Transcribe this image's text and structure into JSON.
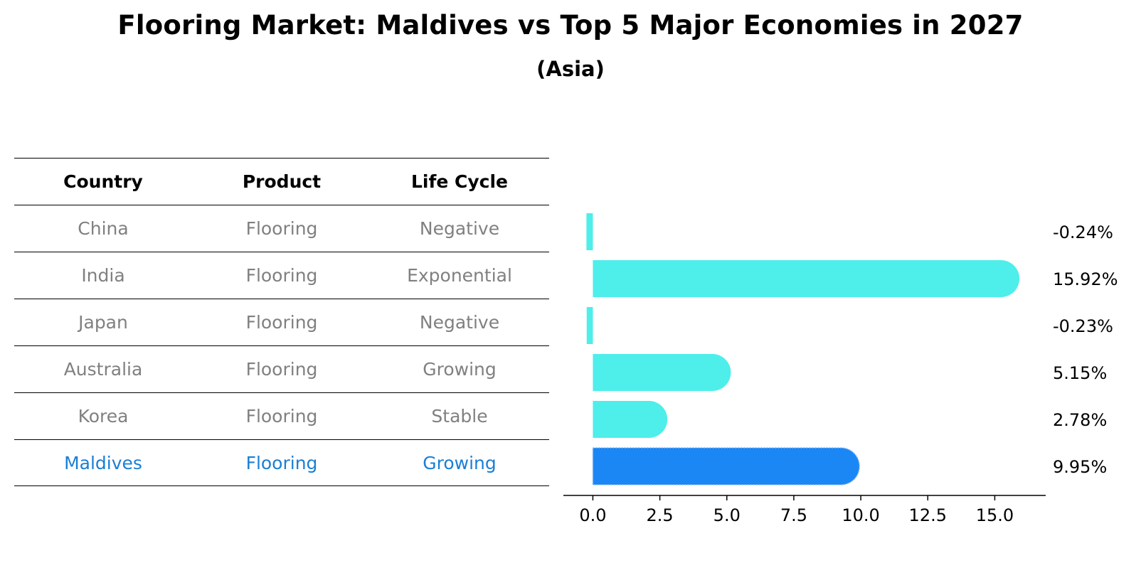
{
  "title": "Flooring Market: Maldives vs Top 5 Major Economies in 2027",
  "subtitle": "(Asia)",
  "table": {
    "headers": [
      "Country",
      "Product",
      "Life Cycle"
    ],
    "rows": [
      [
        "China",
        "Flooring",
        "Negative"
      ],
      [
        "India",
        "Flooring",
        "Exponential"
      ],
      [
        "Japan",
        "Flooring",
        "Negative"
      ],
      [
        "Australia",
        "Flooring",
        "Growing"
      ],
      [
        "Korea",
        "Flooring",
        "Stable"
      ],
      [
        "Maldives",
        "Flooring",
        "Growing"
      ]
    ],
    "highlight_row": 5,
    "text_color": "#808080",
    "highlight_color": "#1a7fd4"
  },
  "chart_data": {
    "type": "bar",
    "orientation": "horizontal",
    "categories": [
      "China",
      "India",
      "Japan",
      "Australia",
      "Korea",
      "Maldives"
    ],
    "values": [
      -0.24,
      15.92,
      -0.23,
      5.15,
      2.78,
      9.95
    ],
    "value_labels": [
      "-0.24%",
      "15.92%",
      "-0.23%",
      "5.15%",
      "2.78%",
      "9.95%"
    ],
    "xlim": [
      -1.1,
      16.9
    ],
    "xticks": [
      0.0,
      2.5,
      5.0,
      7.5,
      10.0,
      12.5,
      15.0
    ],
    "xtick_labels": [
      "0.0",
      "2.5",
      "5.0",
      "7.5",
      "10.0",
      "12.5",
      "15.0"
    ],
    "bar_color": "#4eeeea",
    "highlight_color": "#1a87f5",
    "highlight_index": 5,
    "grid": false,
    "title": "",
    "xlabel": "",
    "ylabel": ""
  }
}
